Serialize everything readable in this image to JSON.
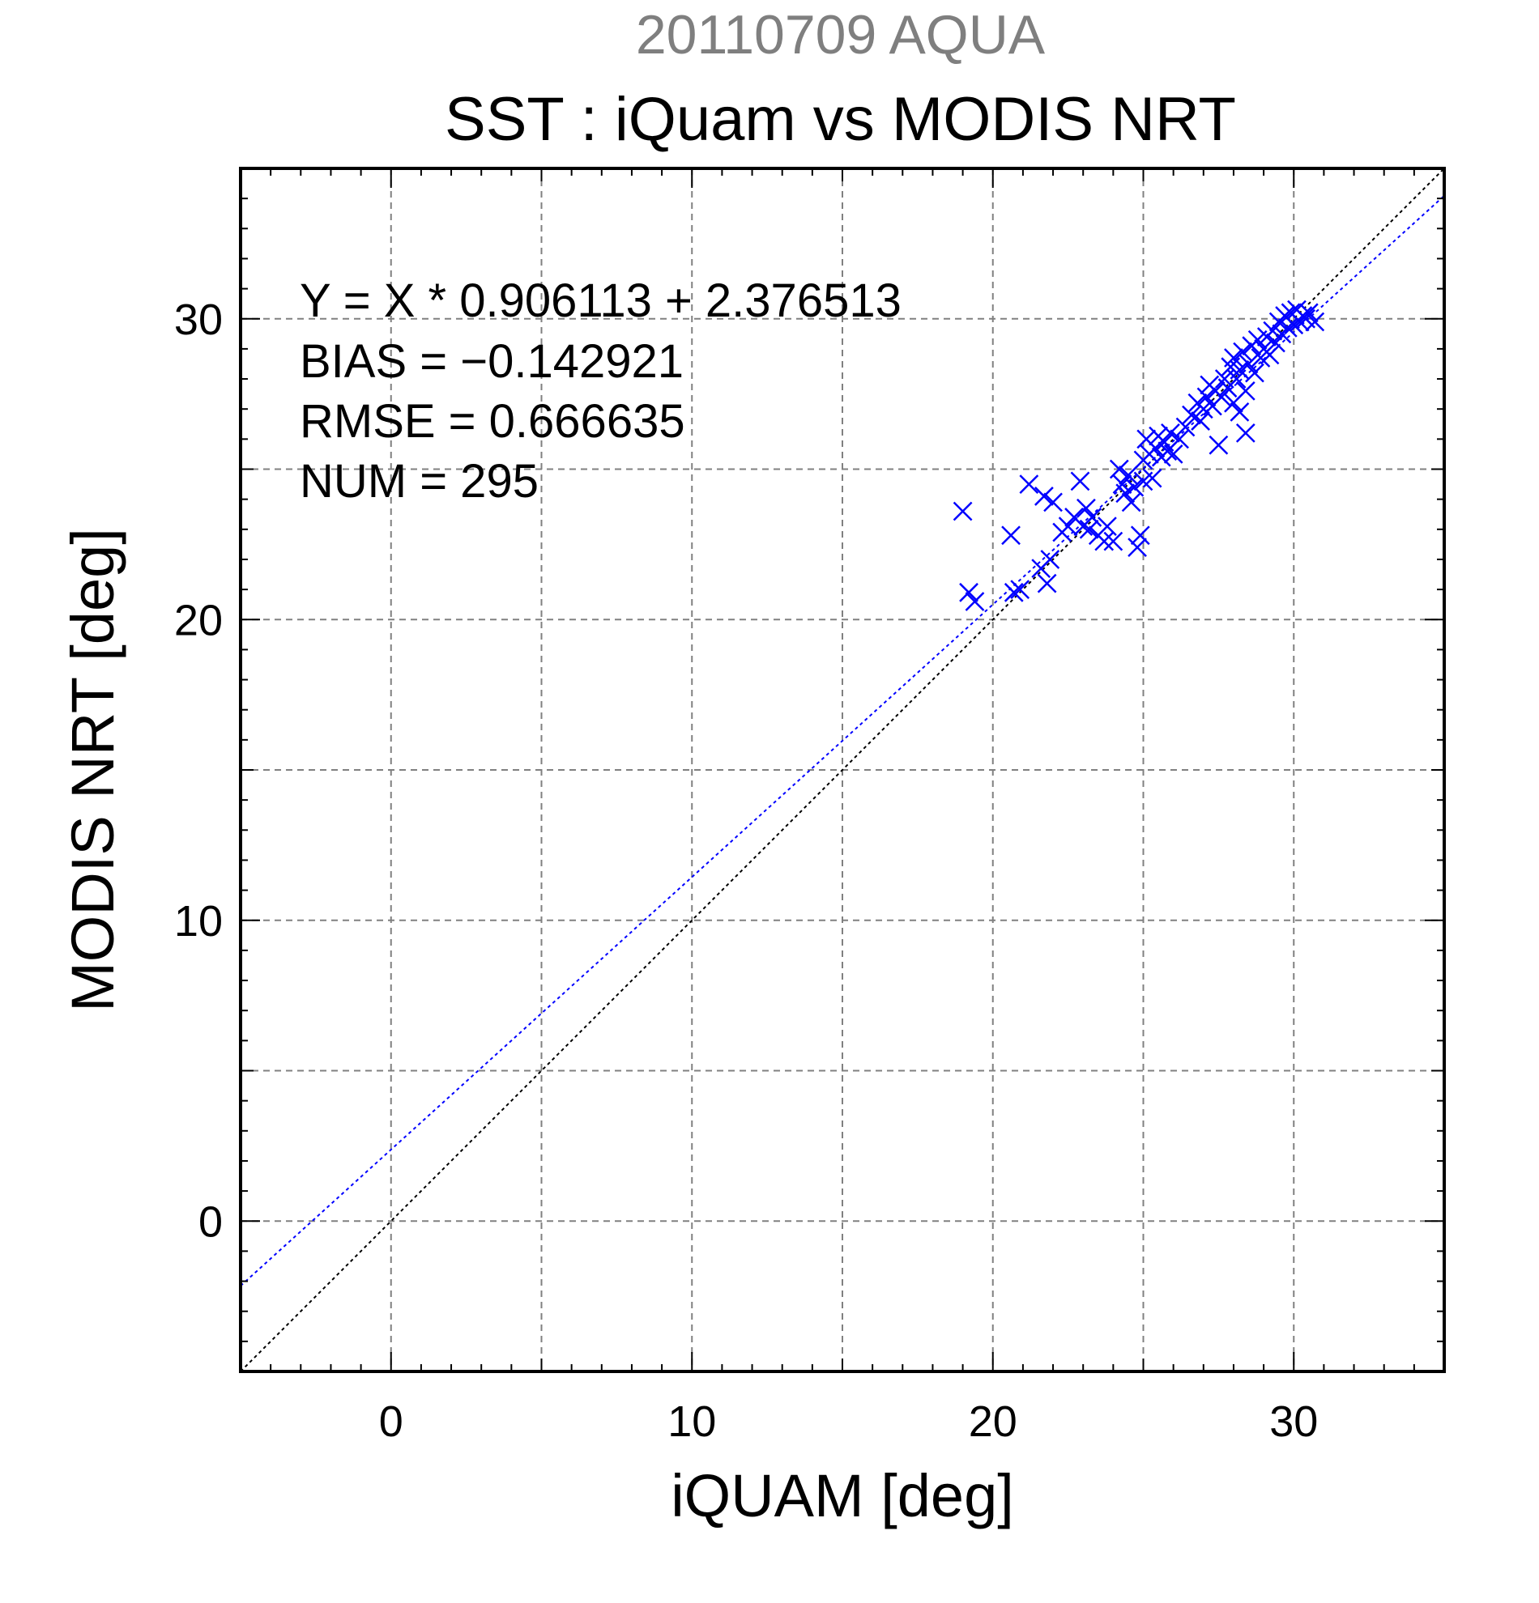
{
  "header": {
    "date_title": "20110709 AQUA",
    "title": "SST : iQuam vs MODIS NRT"
  },
  "stats": {
    "fit_line": "Y = X * 0.906113 + 2.376513",
    "bias": "BIAS = −0.142921",
    "rmse": "RMSE = 0.666635",
    "num": "NUM = 295"
  },
  "chart_data": {
    "type": "scatter",
    "title": "SST : iQuam vs MODIS NRT",
    "subtitle": "20110709 AQUA",
    "xlabel": "iQUAM [deg]",
    "ylabel": "MODIS NRT [deg]",
    "xlim": [
      -5,
      35
    ],
    "ylim": [
      -5,
      35
    ],
    "x_ticks": [
      0,
      10,
      20,
      30
    ],
    "y_ticks": [
      0,
      10,
      20,
      30
    ],
    "grid": true,
    "colors": {
      "points": "#0000ff",
      "fit_line": "#0000ff",
      "one_to_one": "#000000",
      "grid": "#808080"
    },
    "fit": {
      "slope": 0.906113,
      "intercept": 2.376513
    },
    "series": [
      {
        "marker": "x",
        "points": [
          [
            19.0,
            23.6
          ],
          [
            19.2,
            20.9
          ],
          [
            19.4,
            20.6
          ],
          [
            20.6,
            22.8
          ],
          [
            20.7,
            20.9
          ],
          [
            20.9,
            21.0
          ],
          [
            21.2,
            24.5
          ],
          [
            21.6,
            21.7
          ],
          [
            21.7,
            24.1
          ],
          [
            21.8,
            21.2
          ],
          [
            21.9,
            22.0
          ],
          [
            22.0,
            23.9
          ],
          [
            22.3,
            22.9
          ],
          [
            22.5,
            23.1
          ],
          [
            22.7,
            23.4
          ],
          [
            22.9,
            24.6
          ],
          [
            23.0,
            23.1
          ],
          [
            23.1,
            23.7
          ],
          [
            23.2,
            23.0
          ],
          [
            23.3,
            23.4
          ],
          [
            23.5,
            22.8
          ],
          [
            23.7,
            22.6
          ],
          [
            23.8,
            23.1
          ],
          [
            24.0,
            22.6
          ],
          [
            24.2,
            25.0
          ],
          [
            24.3,
            24.5
          ],
          [
            24.4,
            24.2
          ],
          [
            24.5,
            24.8
          ],
          [
            24.6,
            23.9
          ],
          [
            24.7,
            24.4
          ],
          [
            24.8,
            22.4
          ],
          [
            24.9,
            22.8
          ],
          [
            25.0,
            25.3
          ],
          [
            25.0,
            24.6
          ],
          [
            25.1,
            26.0
          ],
          [
            25.2,
            25.5
          ],
          [
            25.3,
            24.7
          ],
          [
            25.4,
            25.7
          ],
          [
            25.5,
            26.1
          ],
          [
            25.6,
            25.4
          ],
          [
            25.7,
            25.9
          ],
          [
            25.8,
            25.6
          ],
          [
            25.9,
            26.2
          ],
          [
            26.0,
            25.5
          ],
          [
            26.2,
            26.0
          ],
          [
            26.4,
            26.4
          ],
          [
            26.6,
            26.8
          ],
          [
            26.8,
            27.2
          ],
          [
            26.9,
            26.6
          ],
          [
            27.0,
            27.0
          ],
          [
            27.1,
            27.4
          ],
          [
            27.2,
            27.8
          ],
          [
            27.3,
            27.1
          ],
          [
            27.4,
            27.6
          ],
          [
            27.5,
            25.8
          ],
          [
            27.6,
            27.4
          ],
          [
            27.7,
            28.0
          ],
          [
            27.8,
            27.7
          ],
          [
            27.9,
            28.4
          ],
          [
            28.0,
            27.2
          ],
          [
            28.0,
            28.7
          ],
          [
            28.1,
            28.0
          ],
          [
            28.2,
            26.9
          ],
          [
            28.2,
            28.3
          ],
          [
            28.3,
            28.9
          ],
          [
            28.4,
            27.6
          ],
          [
            28.4,
            26.2
          ],
          [
            28.5,
            28.5
          ],
          [
            28.6,
            29.1
          ],
          [
            28.7,
            28.2
          ],
          [
            28.8,
            29.3
          ],
          [
            28.9,
            28.7
          ],
          [
            29.0,
            29.0
          ],
          [
            29.1,
            29.4
          ],
          [
            29.2,
            28.8
          ],
          [
            29.3,
            29.6
          ],
          [
            29.4,
            29.2
          ],
          [
            29.5,
            29.9
          ],
          [
            29.6,
            29.5
          ],
          [
            29.7,
            30.1
          ],
          [
            29.8,
            29.7
          ],
          [
            29.9,
            30.2
          ],
          [
            30.0,
            29.8
          ],
          [
            30.1,
            30.3
          ],
          [
            30.2,
            29.9
          ],
          [
            30.3,
            30.1
          ],
          [
            30.4,
            30.0
          ],
          [
            30.5,
            30.2
          ],
          [
            30.7,
            29.9
          ]
        ]
      }
    ]
  }
}
